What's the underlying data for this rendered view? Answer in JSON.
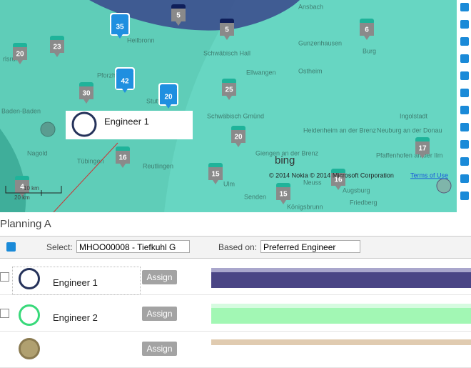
{
  "map": {
    "cities": [
      "Heilbronn",
      "Ansbach",
      "Gunzenhausen",
      "Schwäbisch Hall",
      "Ellwangen",
      "Ostheim",
      "Burg",
      "rlsruhe",
      "Pforzheim",
      "Stuttgart",
      "Schwäbisch Gmünd",
      "Ingolstadt",
      "Heidenheim an der Brenz",
      "Neuburg an der Donau",
      "Pfaffenhofen an der Ilm",
      "Giengen an der Brenz",
      "Baden-Baden",
      "Nagold",
      "Tübingen",
      "Reutlingen",
      "Ulm",
      "Senden",
      "Augsburg",
      "Friedberg",
      "Königsbrunn",
      "Neuss"
    ],
    "markers": [
      5,
      5,
      35,
      6,
      20,
      23,
      42,
      20,
      30,
      25,
      20,
      16,
      15,
      17,
      15,
      16,
      4
    ],
    "tooltip": "Engineer 1",
    "logo": "bing",
    "copyright": "© 2014 Nokia © 2014 Microsoft Corporation",
    "terms": "Terms of Use",
    "scale": [
      "10 km",
      "20 km"
    ]
  },
  "planning": {
    "title": "Planning A",
    "select_label": "Select:",
    "select_value": "MHOO00008 - Tiefkuhl G",
    "based_label": "Based on:",
    "based_value": "Preferred Engineer",
    "rows": [
      {
        "name": "Engineer 1",
        "button": "Assign"
      },
      {
        "name": "Engineer 2",
        "button": "Assign"
      },
      {
        "button": "Assign"
      }
    ]
  }
}
